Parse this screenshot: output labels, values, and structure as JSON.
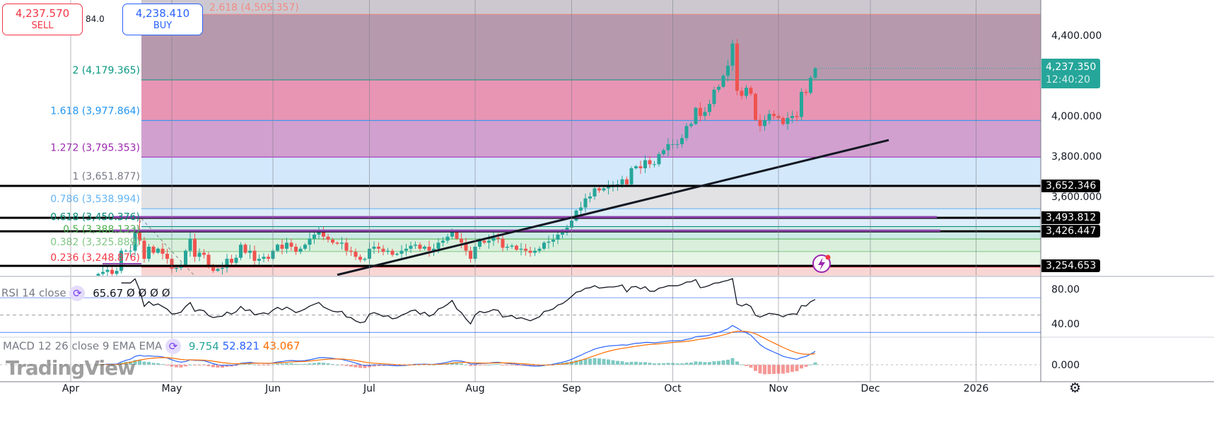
{
  "trade_panel": {
    "sell_price": "4,237.570",
    "sell_label": "SELL",
    "spread": "84.0",
    "buy_price": "4,238.410",
    "buy_label": "BUY"
  },
  "price_axis": {
    "ticks": [
      "4,400.000",
      "4,000.000",
      "3,800.000",
      "3,600.000"
    ],
    "tick_values": [
      4400,
      4000,
      3800,
      3600
    ],
    "last_price": "4,237.350",
    "countdown": "12:40:20",
    "level_tags": [
      {
        "label": "3,652.346",
        "value": 3652.346
      },
      {
        "label": "3,493.812",
        "value": 3493.812
      },
      {
        "label": "3,426.447",
        "value": 3426.447
      },
      {
        "label": "3,254.653",
        "value": 3254.653
      }
    ]
  },
  "fib_levels": [
    {
      "label": "2.618 (4,505.357)",
      "value": 4505.357,
      "color": "#f28b82",
      "band": "#b799ae"
    },
    {
      "label": "2 (4,179.365)",
      "value": 4179.365,
      "color": "#089981",
      "band": "#e895b3"
    },
    {
      "label": "1.618 (3,977.864)",
      "value": 3977.864,
      "color": "#2196f3",
      "band": "#d1a0cf"
    },
    {
      "label": "1.272 (3,795.353)",
      "value": 3795.353,
      "color": "#9c27b0",
      "band": "#d3e8fb"
    },
    {
      "label": "1 (3,651.877)",
      "value": 3651.877,
      "color": "#787b86",
      "band": "#e2e2e4"
    },
    {
      "label": "0.786 (3,538.994)",
      "value": 3538.994,
      "color": "#64b5f6",
      "band": "#ddedf9"
    },
    {
      "label": "0.618 (3,450.376)",
      "value": 3450.376,
      "color": "#00897b",
      "band": "#cdeae6"
    },
    {
      "label": "0.5 (3,388.133)",
      "value": 3388.133,
      "color": "#4caf50",
      "band": "#d9efdb"
    },
    {
      "label": "0.382 (3,325.889)",
      "value": 3325.889,
      "color": "#81c784",
      "band": "#e6f5e6"
    },
    {
      "label": "0.236 (3,248.876)",
      "value": 3248.876,
      "color": "#f23645",
      "band": "#f9d6d4"
    }
  ],
  "rsi": {
    "title": "RSI 14 close",
    "value": "65.67",
    "extras": [
      "Ø",
      "Ø",
      "Ø",
      "Ø"
    ],
    "ticks": [
      "80.00",
      "40.00"
    ],
    "tick_values": [
      80,
      40
    ],
    "bands": [
      70,
      50,
      30
    ]
  },
  "macd": {
    "title": "MACD 12 26 close 9 EMA EMA",
    "histogram": "9.754",
    "macd": "52.821",
    "signal": "43.067",
    "ticks": [
      "0.000"
    ],
    "colors": {
      "histogram": "#26a69a",
      "macd": "#2962ff",
      "signal": "#ff6d00"
    }
  },
  "time_axis": {
    "labels": [
      {
        "label": "Apr",
        "date": "2025-04-01"
      },
      {
        "label": "May",
        "date": "2025-05-01"
      },
      {
        "label": "Jun",
        "date": "2025-06-02"
      },
      {
        "label": "Jul",
        "date": "2025-07-01"
      },
      {
        "label": "Aug",
        "date": "2025-08-01"
      },
      {
        "label": "Sep",
        "date": "2025-09-01"
      },
      {
        "label": "Oct",
        "date": "2025-10-01"
      },
      {
        "label": "Nov",
        "date": "2025-11-03"
      },
      {
        "label": "Dec",
        "date": "2025-12-01"
      },
      {
        "label": "2026",
        "date": "2026-01-01"
      }
    ]
  },
  "watermark": "TradingView",
  "colors": {
    "up": "#26a69a",
    "down": "#ef5350",
    "last_price": "#26a69a"
  },
  "chart_data": {
    "type": "candlestick",
    "ylim": [
      3200,
      4520
    ],
    "from": "2025-04-09",
    "daily_closes": [
      3215,
      3225,
      3235,
      3215,
      3230,
      3330,
      3330,
      3330,
      3420,
      3380,
      3290,
      3350,
      3320,
      3340,
      3315,
      3290,
      3240,
      3245,
      3260,
      3330,
      3390,
      3300,
      3320,
      3310,
      3255,
      3230,
      3240,
      3245,
      3290,
      3270,
      3295,
      3360,
      3320,
      3330,
      3280,
      3290,
      3300,
      3290,
      3330,
      3360,
      3340,
      3370,
      3350,
      3325,
      3340,
      3360,
      3390,
      3410,
      3430,
      3400,
      3385,
      3370,
      3365,
      3370,
      3330,
      3325,
      3300,
      3285,
      3290,
      3340,
      3350,
      3340,
      3325,
      3330,
      3310,
      3315,
      3330,
      3340,
      3355,
      3360,
      3340,
      3350,
      3330,
      3340,
      3370,
      3380,
      3400,
      3430,
      3390,
      3370,
      3330,
      3290,
      3350,
      3380,
      3370,
      3380,
      3395,
      3390,
      3345,
      3350,
      3355,
      3335,
      3340,
      3330,
      3320,
      3330,
      3340,
      3370,
      3375,
      3385,
      3410,
      3420,
      3445,
      3480,
      3530,
      3545,
      3590,
      3600,
      3640,
      3630,
      3640,
      3650,
      3650,
      3660,
      3685,
      3660,
      3740,
      3750,
      3740,
      3780,
      3760,
      3760,
      3810,
      3830,
      3860,
      3860,
      3860,
      3890,
      3950,
      3960,
      4040,
      4000,
      4020,
      4060,
      4130,
      4145,
      4200,
      4250,
      4360,
      4125,
      4100,
      4140,
      4110,
      3980,
      3950,
      3980,
      4010,
      4000,
      3990,
      3960,
      3990,
      4000,
      3995,
      4120,
      4115,
      4190,
      4237
    ],
    "horizontal_levels": [
      3652.346,
      3493.812,
      3426.447,
      3254.653
    ],
    "trendline": [
      {
        "date": "2025-06-20",
        "price": 3210
      },
      {
        "date": "2025-12-05",
        "price": 3880
      }
    ]
  }
}
